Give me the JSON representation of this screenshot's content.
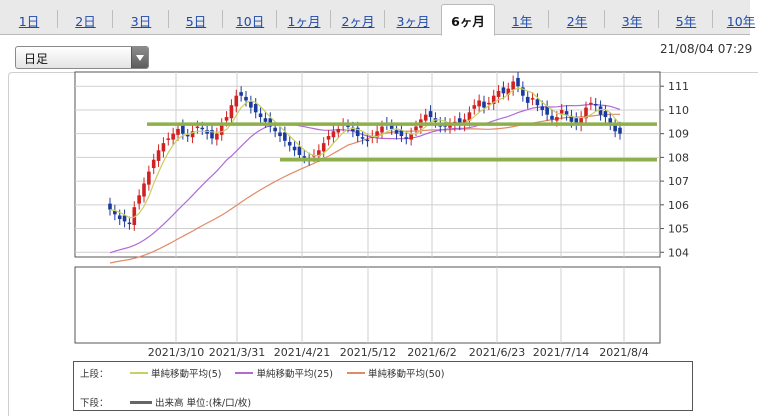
{
  "tabs": [
    "1日",
    "2日",
    "3日",
    "5日",
    "10日",
    "1ヶ月",
    "2ヶ月",
    "3ヶ月",
    "6ヶ月",
    "1年",
    "2年",
    "3年",
    "5年",
    "10年"
  ],
  "active_tab": 8,
  "selector": {
    "value": "日足"
  },
  "timestamp": "21/08/04 07:29",
  "colors": {
    "candle_up": "#d02222",
    "candle_down": "#1c3a9e",
    "sma5": "#c8d060",
    "sma25": "#b06ad8",
    "sma50": "#e08a68",
    "support_line": "#8db04a",
    "volume": "#666666"
  },
  "legend": {
    "upper_title": "上段：",
    "lower_title": "下段：",
    "sma5": "単純移動平均(5)",
    "sma25": "単純移動平均(25)",
    "sma50": "単純移動平均(50)",
    "volume": "出来高 単位:(株/口/枚)"
  },
  "chart_data": {
    "type": "candlestick",
    "x_labels": [
      "2021/3/10",
      "2021/3/31",
      "2021/4/21",
      "2021/5/12",
      "2021/6/2",
      "2021/6/23",
      "2021/7/14",
      "2021/8/4"
    ],
    "y_ticks": [
      104,
      105,
      106,
      107,
      108,
      109,
      110,
      111
    ],
    "ylim": [
      103.8,
      111.6
    ],
    "grid": true,
    "horizontal_lines": [
      109.4,
      107.9
    ],
    "daily_close": [
      105.8,
      105.6,
      105.4,
      105.3,
      105.2,
      105.9,
      106.4,
      106.9,
      107.4,
      107.9,
      108.3,
      108.6,
      108.8,
      109.0,
      109.2,
      109.0,
      108.9,
      109.1,
      109.3,
      109.2,
      109.0,
      108.8,
      109.0,
      109.4,
      109.7,
      110.2,
      110.6,
      110.6,
      110.4,
      110.1,
      109.9,
      109.7,
      109.5,
      109.3,
      109.1,
      108.9,
      108.7,
      108.5,
      108.3,
      108.1,
      108.0,
      107.9,
      108.1,
      108.3,
      108.6,
      108.9,
      109.1,
      109.2,
      109.4,
      109.3,
      109.1,
      108.9,
      108.8,
      108.7,
      108.9,
      109.1,
      109.3,
      109.4,
      109.2,
      109.0,
      108.9,
      108.8,
      109.0,
      109.3,
      109.6,
      109.8,
      109.7,
      109.5,
      109.3,
      109.3,
      109.4,
      109.5,
      109.4,
      109.6,
      109.9,
      110.2,
      110.4,
      110.1,
      110.3,
      110.6,
      110.8,
      110.7,
      110.9,
      111.2,
      111.0,
      110.6,
      110.3,
      110.5,
      110.2,
      110.0,
      109.8,
      109.6,
      109.7,
      110.0,
      109.8,
      109.5,
      109.4,
      109.7,
      110.1,
      110.3,
      110.2,
      109.8,
      109.7,
      109.4,
      109.1,
      109.0
    ]
  }
}
